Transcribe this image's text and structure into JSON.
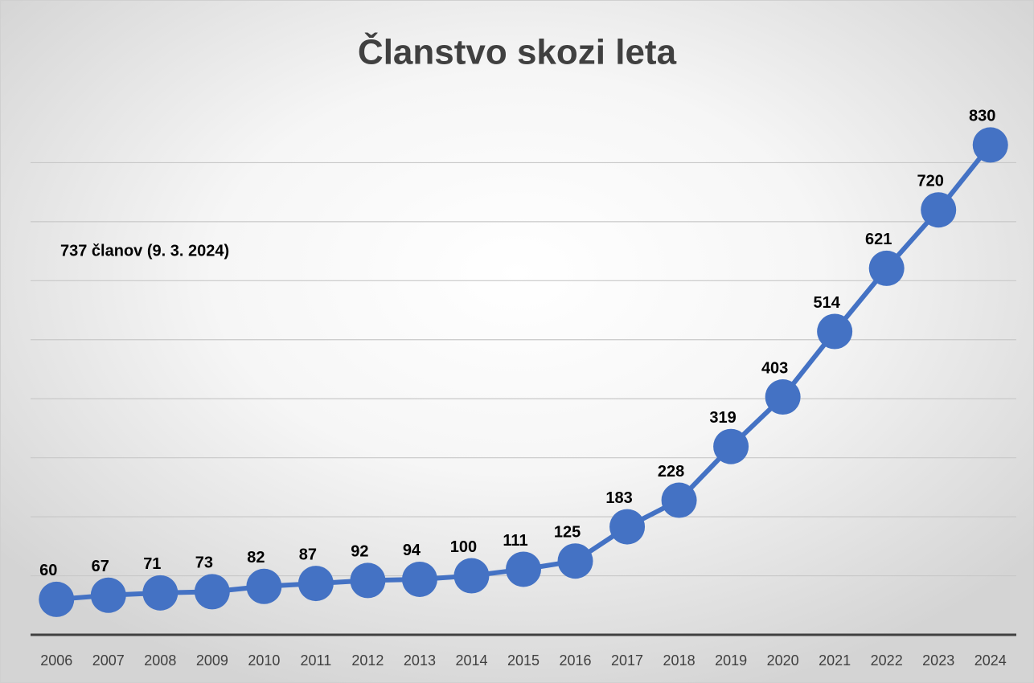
{
  "chart_data": {
    "type": "line",
    "title": "Članstvo skozi leta",
    "annotation": "737 članov (9. 3. 2024)",
    "categories": [
      "2006",
      "2007",
      "2008",
      "2009",
      "2010",
      "2011",
      "2012",
      "2013",
      "2014",
      "2015",
      "2016",
      "2017",
      "2018",
      "2019",
      "2020",
      "2021",
      "2022",
      "2023",
      "2024"
    ],
    "series": [
      {
        "name": "Članstvo",
        "color": "#4472c4",
        "values": [
          60,
          67,
          71,
          73,
          82,
          87,
          92,
          94,
          100,
          111,
          125,
          183,
          228,
          319,
          403,
          514,
          621,
          720,
          830
        ]
      }
    ],
    "ylim": [
      0,
      900
    ],
    "yticks": [
      100,
      200,
      300,
      400,
      500,
      600,
      700,
      800
    ],
    "grid": true
  }
}
